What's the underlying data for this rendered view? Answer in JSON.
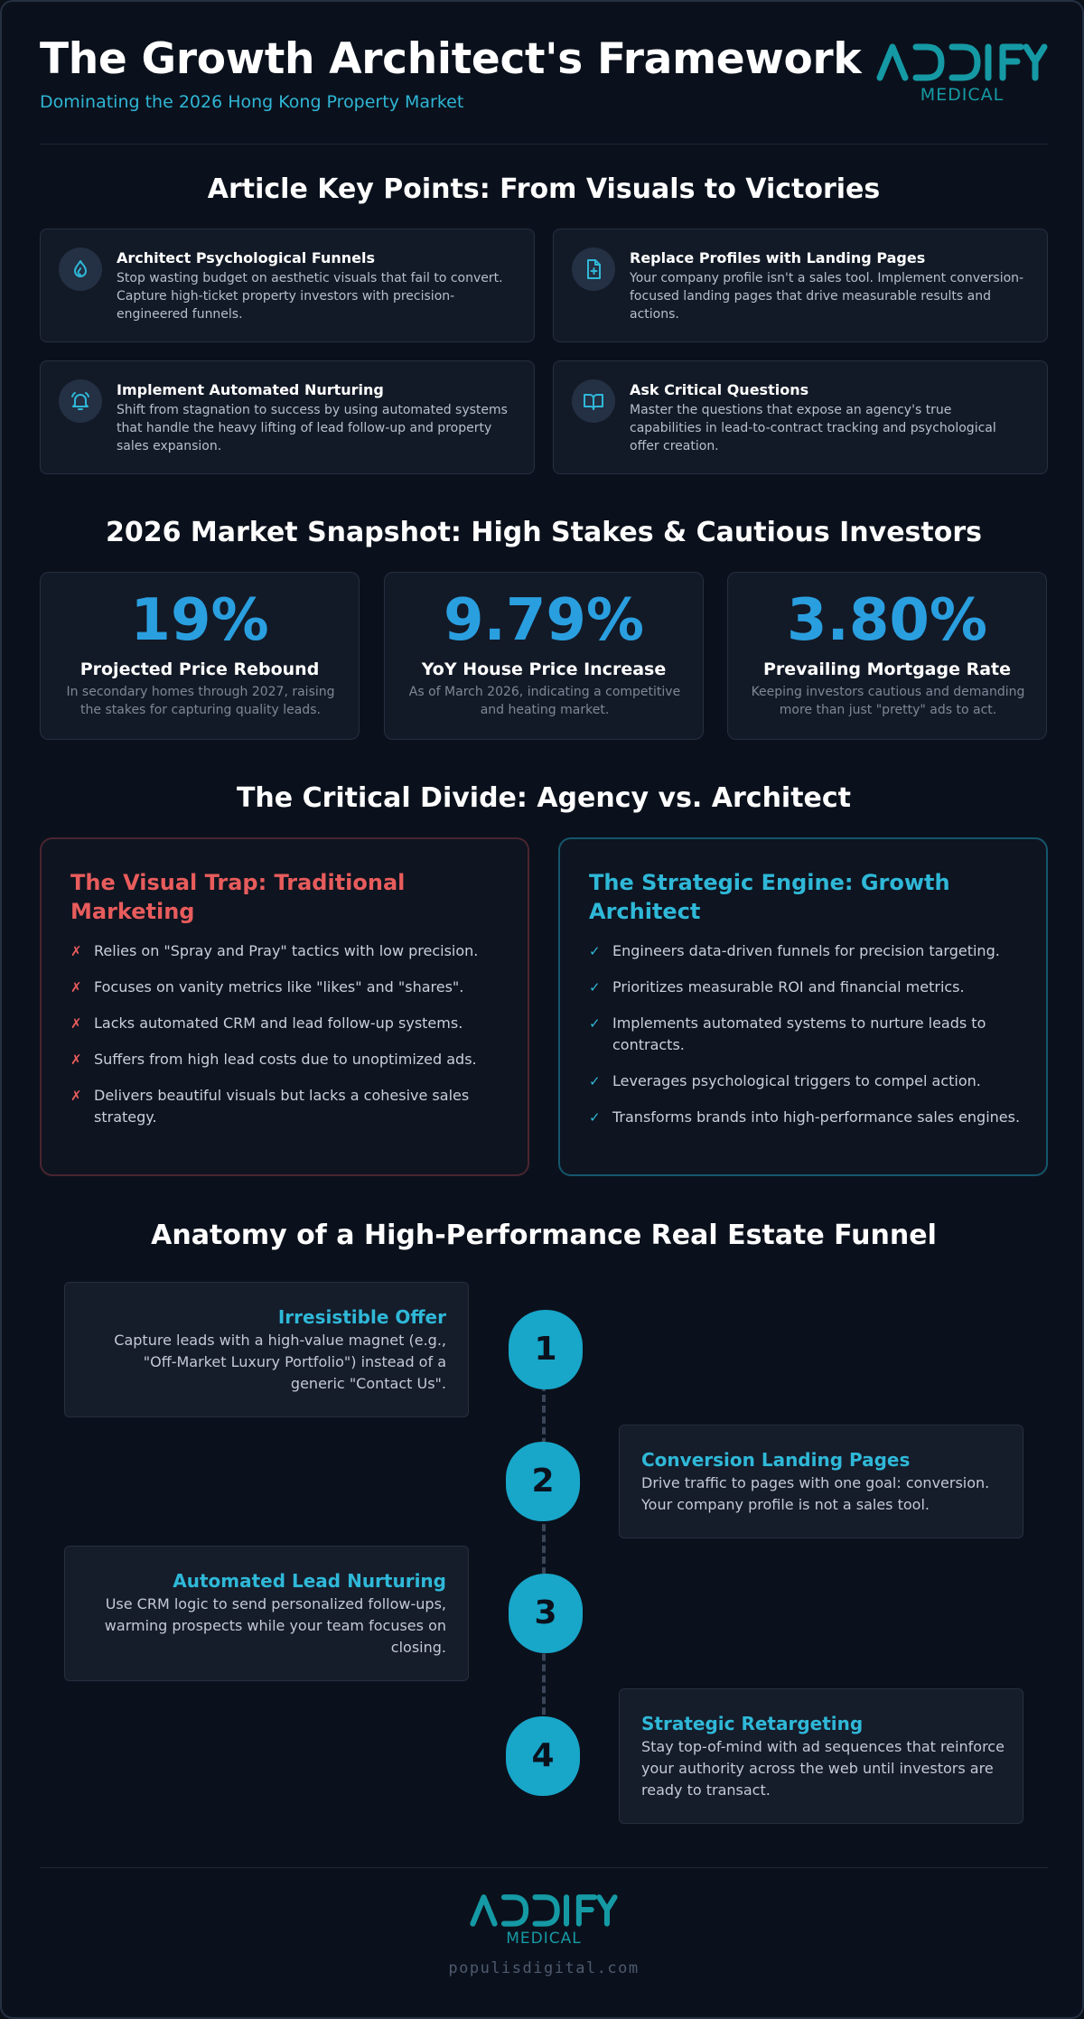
{
  "header": {
    "title": "The Growth Architect's Framework",
    "subtitle": "Dominating the 2026 Hong Kong Property Market",
    "logo_text": "ADDIFY",
    "logo_sub": "MEDICAL"
  },
  "key_points": {
    "title": "Article Key Points: From Visuals to Victories",
    "items": [
      {
        "title": "Architect Psychological Funnels",
        "text": "Stop wasting budget on aesthetic visuals that fail to convert. Capture high-ticket property investors with precision-engineered funnels.",
        "icon": "flame-icon"
      },
      {
        "title": "Replace Profiles with Landing Pages",
        "text": "Your company profile isn't a sales tool. Implement conversion-focused landing pages that drive measurable results and actions.",
        "icon": "document-plus-icon"
      },
      {
        "title": "Implement Automated Nurturing",
        "text": "Shift from stagnation to success by using automated systems that handle the heavy lifting of lead follow-up and property sales expansion.",
        "icon": "bell-icon"
      },
      {
        "title": "Ask Critical Questions",
        "text": "Master the questions that expose an agency's true capabilities in lead-to-contract tracking and psychological offer creation.",
        "icon": "book-icon"
      }
    ]
  },
  "snapshot": {
    "title": "2026 Market Snapshot: High Stakes & Cautious Investors",
    "stats": [
      {
        "value": "19%",
        "label": "Projected Price Rebound",
        "desc": "In secondary homes through 2027, raising the stakes for capturing quality leads."
      },
      {
        "value": "9.79%",
        "label": "YoY House Price Increase",
        "desc": "As of March 2026, indicating a competitive and heating market."
      },
      {
        "value": "3.80%",
        "label": "Prevailing Mortgage Rate",
        "desc": "Keeping investors cautious and demanding more than just \"pretty\" ads to act."
      }
    ]
  },
  "divide": {
    "title": "The Critical Divide: Agency vs. Architect",
    "trap": {
      "title": "The Visual Trap: Traditional Marketing",
      "mark": "✗",
      "items": [
        "Relies on \"Spray and Pray\" tactics with low precision.",
        "Focuses on vanity metrics like \"likes\" and \"shares\".",
        "Lacks automated CRM and lead follow-up systems.",
        "Suffers from high lead costs due to unoptimized ads.",
        "Delivers beautiful visuals but lacks a cohesive sales strategy."
      ]
    },
    "engine": {
      "title": "The Strategic Engine: Growth Architect",
      "mark": "✓",
      "items": [
        "Engineers data-driven funnels for precision targeting.",
        "Prioritizes measurable ROI and financial metrics.",
        "Implements automated systems to nurture leads to contracts.",
        "Leverages psychological triggers to compel action.",
        "Transforms brands into high-performance sales engines."
      ]
    }
  },
  "funnel": {
    "title": "Anatomy of a High-Performance Real Estate Funnel",
    "steps": [
      {
        "number": "1",
        "title": "Irresistible Offer",
        "text": "Capture leads with a high-value magnet (e.g., \"Off-Market Luxury Portfolio\") instead of a generic \"Contact Us\"."
      },
      {
        "number": "2",
        "title": "Conversion Landing Pages",
        "text": "Drive traffic to pages with one goal: conversion. Your company profile is not a sales tool."
      },
      {
        "number": "3",
        "title": "Automated Lead Nurturing",
        "text": "Use CRM logic to send personalized follow-ups, warming prospects while your team focuses on closing."
      },
      {
        "number": "4",
        "title": "Strategic Retargeting",
        "text": "Stay top-of-mind with ad sequences that reinforce your authority across the web until investors are ready to transact."
      }
    ]
  },
  "footer": {
    "logo_text": "ADDIFY",
    "logo_sub": "MEDICAL",
    "url": "populisdigital.com"
  },
  "colors": {
    "accent_cyan": "#2fb8d8",
    "accent_blue": "#2a9fe0",
    "danger_red": "#e85c5c",
    "brand_teal": "#159aa5",
    "background": "#0b111c"
  }
}
